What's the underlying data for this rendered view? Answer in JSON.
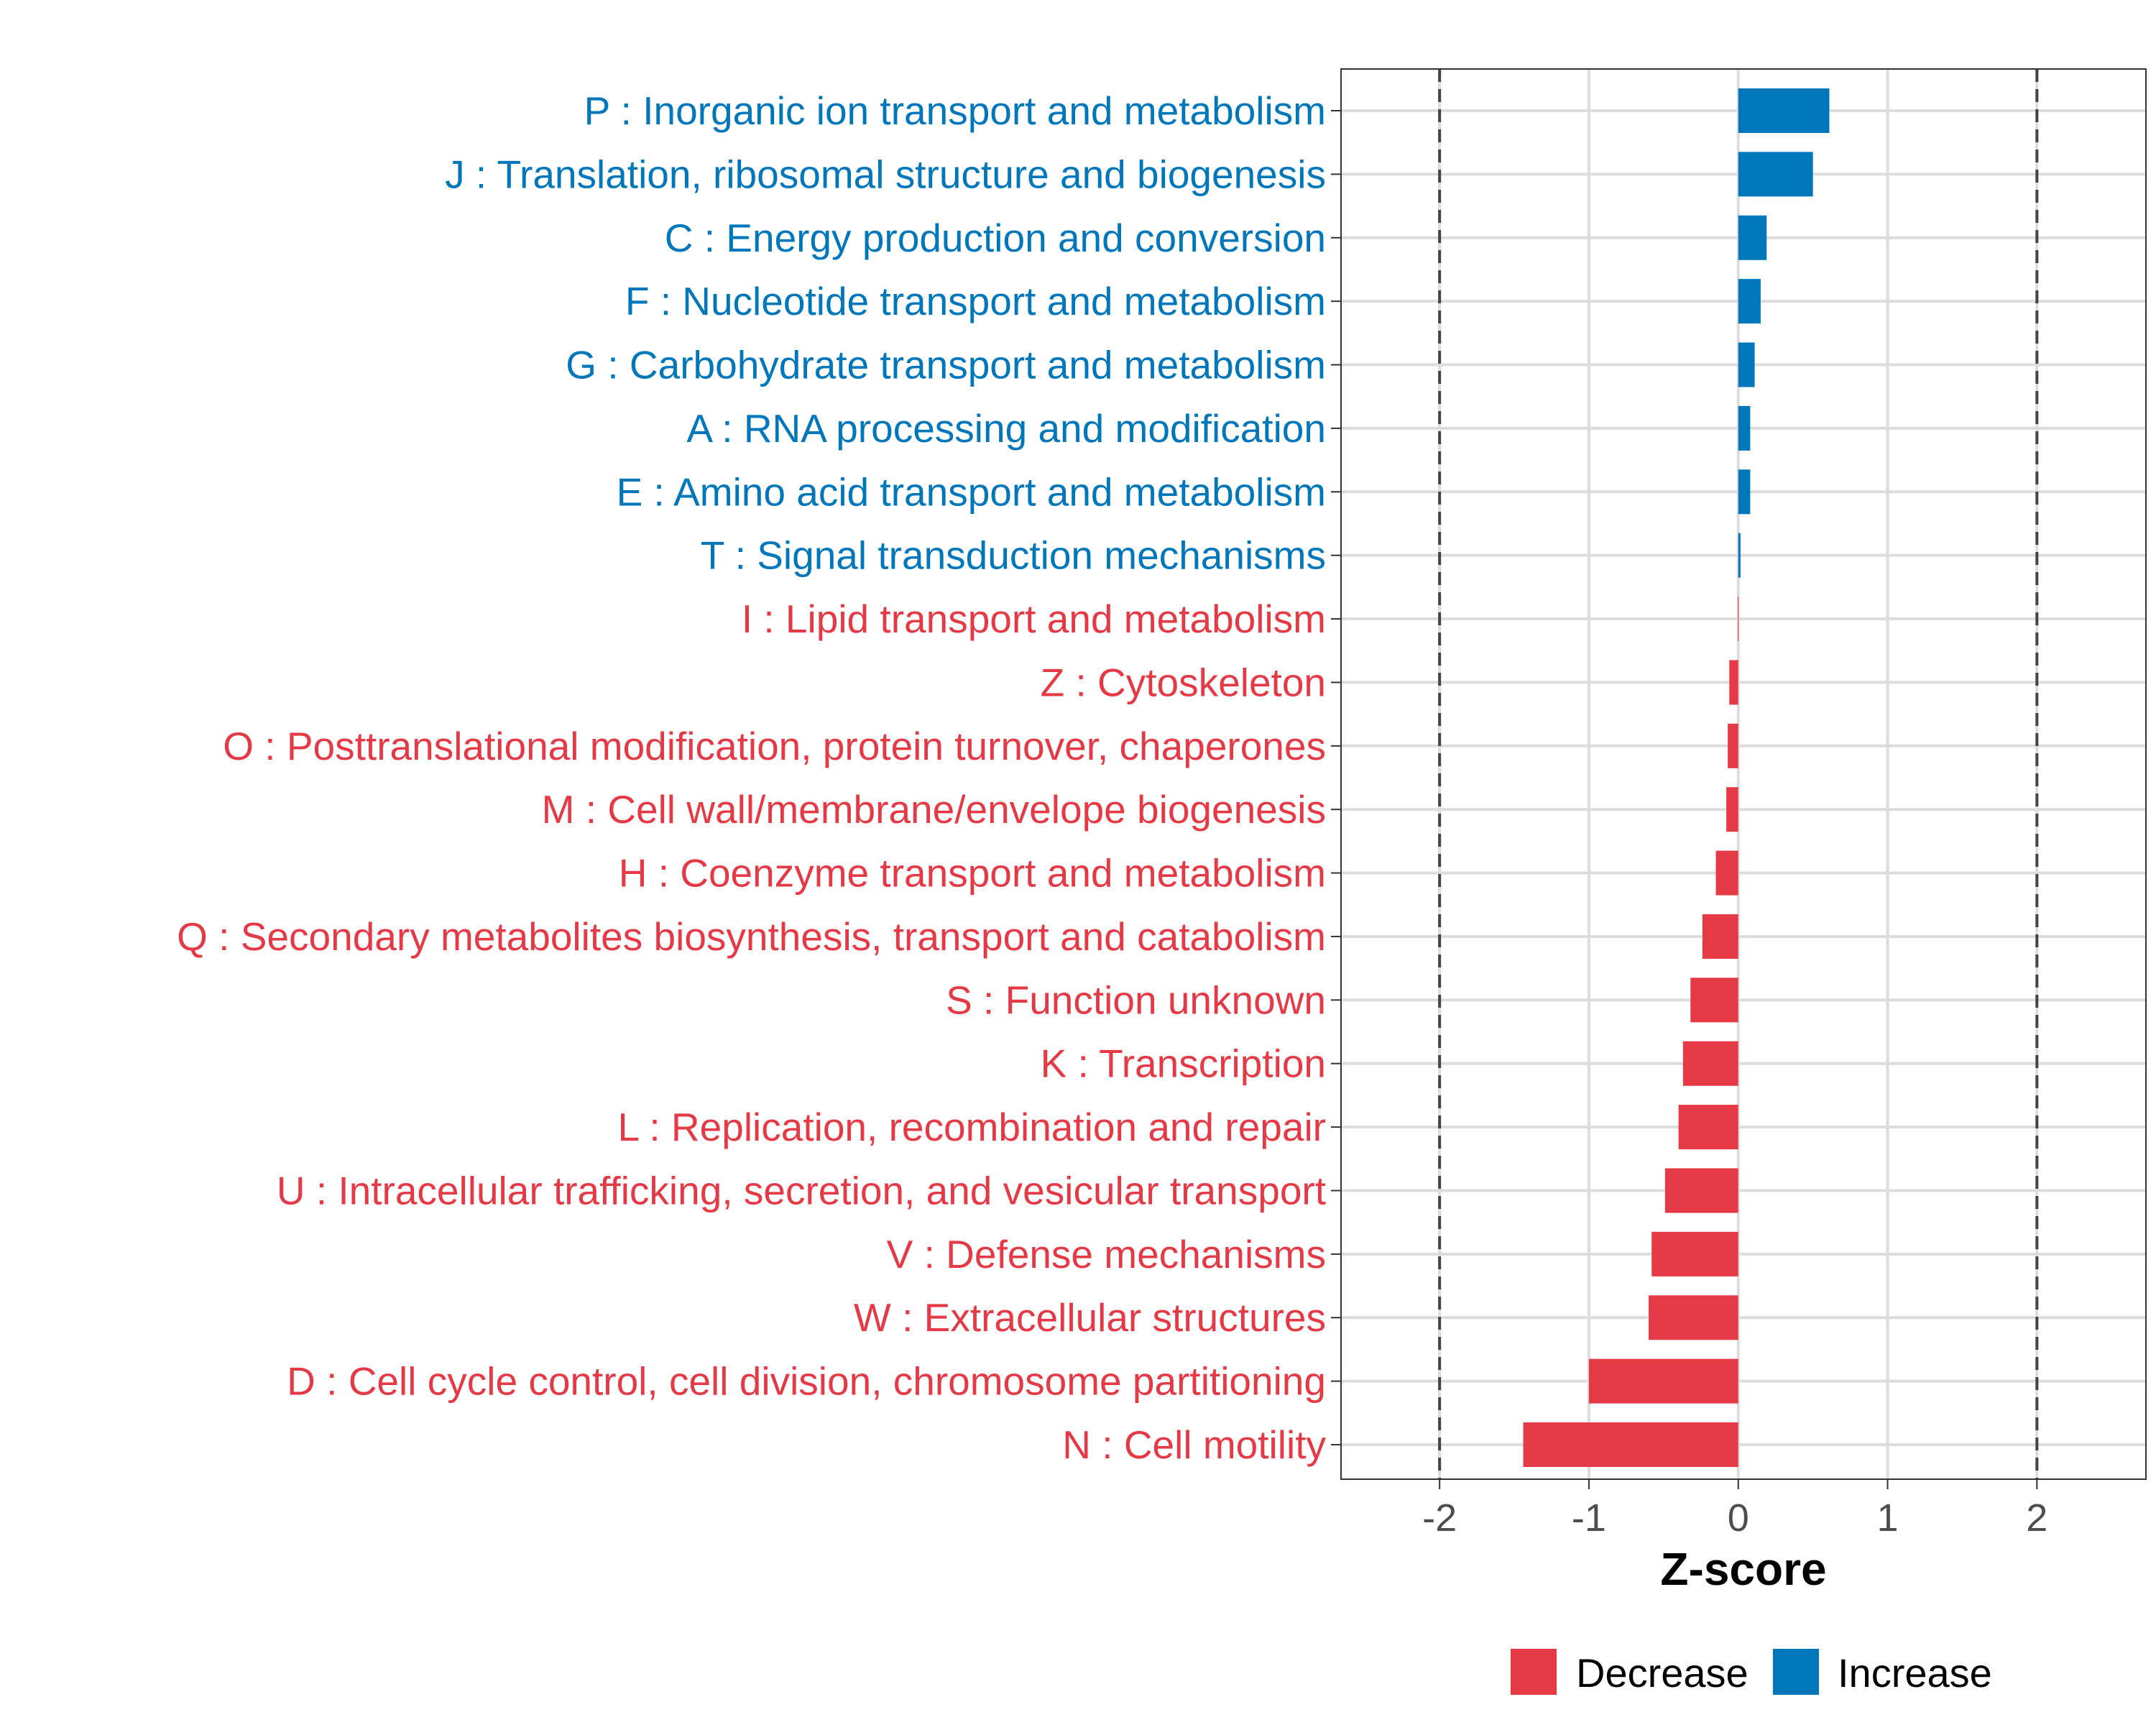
{
  "chart_data": {
    "type": "bar",
    "orientation": "horizontal",
    "title": "",
    "xlabel": "Z-score",
    "ylabel": "",
    "xlim": [
      -2.66,
      2.73
    ],
    "xticks": [
      -2,
      -1,
      0,
      1,
      2
    ],
    "xtick_labels": [
      "-2",
      "-1",
      "0",
      "1",
      "2"
    ],
    "reference_lines": [
      -2,
      2
    ],
    "grid": true,
    "legend_position": "bottom",
    "colors": {
      "Decrease": "#E63946",
      "Increase": "#0077BB"
    },
    "legend": [
      {
        "label": "Decrease",
        "color": "#E63946"
      },
      {
        "label": "Increase",
        "color": "#0077BB"
      }
    ],
    "categories": [
      "P : Inorganic ion transport and metabolism",
      "J : Translation, ribosomal structure and biogenesis",
      "C : Energy production and conversion",
      "F : Nucleotide transport and metabolism",
      "G : Carbohydrate transport and metabolism",
      "A : RNA processing and modification",
      "E : Amino acid transport and metabolism",
      "T : Signal transduction mechanisms",
      "I : Lipid transport and metabolism",
      "Z : Cytoskeleton",
      "O : Posttranslational modification, protein turnover, chaperones",
      "M : Cell wall/membrane/envelope biogenesis",
      "H : Coenzyme transport and metabolism",
      "Q : Secondary metabolites biosynthesis, transport and catabolism",
      "S : Function unknown",
      "K : Transcription",
      "L : Replication, recombination and repair",
      "U : Intracellular trafficking, secretion, and vesicular transport",
      "V : Defense mechanisms",
      "W : Extracellular structures",
      "D : Cell cycle control, cell division, chromosome partitioning",
      "N : Cell motility"
    ],
    "values": [
      0.61,
      0.5,
      0.19,
      0.15,
      0.11,
      0.08,
      0.08,
      0.015,
      -0.003,
      -0.06,
      -0.07,
      -0.08,
      -0.15,
      -0.24,
      -0.32,
      -0.37,
      -0.4,
      -0.49,
      -0.58,
      -0.6,
      -1.0,
      -1.44
    ],
    "groups": [
      "Increase",
      "Increase",
      "Increase",
      "Increase",
      "Increase",
      "Increase",
      "Increase",
      "Increase",
      "Decrease",
      "Decrease",
      "Decrease",
      "Decrease",
      "Decrease",
      "Decrease",
      "Decrease",
      "Decrease",
      "Decrease",
      "Decrease",
      "Decrease",
      "Decrease",
      "Decrease",
      "Decrease"
    ]
  }
}
